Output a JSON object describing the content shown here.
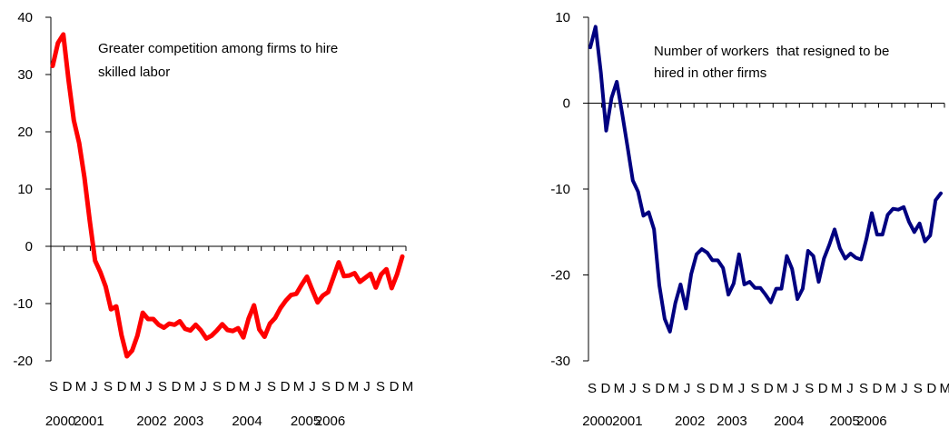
{
  "chart_data": [
    {
      "type": "line",
      "annotation_lines": [
        "Greater competition among firms to hire",
        "skilled labor"
      ],
      "ylim": [
        -20,
        40
      ],
      "yticks": [
        40,
        30,
        20,
        10,
        0,
        -10,
        -20
      ],
      "month_labels": [
        "S",
        "D",
        "M",
        "J",
        "S",
        "D",
        "M",
        "J",
        "S",
        "D",
        "M",
        "J",
        "S",
        "D",
        "M",
        "J",
        "S",
        "D",
        "M",
        "J",
        "S",
        "D",
        "M",
        "J",
        "S",
        "D",
        "M"
      ],
      "year_labels": [
        {
          "label": "2000",
          "month_index": 0.5
        },
        {
          "label": "2001",
          "month_index": 2.6
        },
        {
          "label": "2002",
          "month_index": 7.2
        },
        {
          "label": "2003",
          "month_index": 9.9
        },
        {
          "label": "2004",
          "month_index": 14.2
        },
        {
          "label": "2005",
          "month_index": 18.5
        },
        {
          "label": "2006",
          "month_index": 20.3
        }
      ],
      "series": [
        {
          "color": "#ff0000",
          "values": [
            31.5,
            35.5,
            37,
            29,
            22,
            18,
            12,
            4.5,
            -2.5,
            -4.5,
            -7,
            -11,
            -10.5,
            -15.5,
            -19.2,
            -18.2,
            -15.6,
            -11.6,
            -12.7,
            -12.7,
            -13.7,
            -14.2,
            -13.5,
            -13.7,
            -13.1,
            -14.4,
            -14.7,
            -13.7,
            -14.7,
            -16.1,
            -15.6,
            -14.7,
            -13.6,
            -14.6,
            -14.8,
            -14.3,
            -15.9,
            -12.6,
            -10.3,
            -14.5,
            -15.8,
            -13.5,
            -12.5,
            -10.8,
            -9.5,
            -8.5,
            -8.3,
            -6.7,
            -5.3,
            -7.6,
            -9.8,
            -8.6,
            -8.0,
            -5.4,
            -2.8,
            -5.2,
            -5.1,
            -4.7,
            -6.2,
            -5.5,
            -4.8,
            -7.2,
            -4.9,
            -4.0,
            -7.3,
            -4.9,
            -1.8
          ]
        }
      ]
    },
    {
      "type": "line",
      "annotation_lines": [
        "Number of workers  that resigned to be",
        "hired in other firms"
      ],
      "ylim": [
        -30,
        10
      ],
      "yticks": [
        10,
        0,
        -10,
        -20,
        -30
      ],
      "month_labels": [
        "S",
        "D",
        "M",
        "J",
        "S",
        "D",
        "M",
        "J",
        "S",
        "D",
        "M",
        "J",
        "S",
        "D",
        "M",
        "J",
        "S",
        "D",
        "M",
        "J",
        "S",
        "D",
        "M",
        "J",
        "S",
        "D",
        "M"
      ],
      "year_labels": [
        {
          "label": "2000",
          "month_index": 0.4
        },
        {
          "label": "2001",
          "month_index": 2.6
        },
        {
          "label": "2002",
          "month_index": 7.2
        },
        {
          "label": "2003",
          "month_index": 10.3
        },
        {
          "label": "2004",
          "month_index": 14.5
        },
        {
          "label": "2005",
          "month_index": 18.6
        },
        {
          "label": "2006",
          "month_index": 20.6
        }
      ],
      "series": [
        {
          "color": "#000080",
          "values": [
            6.5,
            8.9,
            3.5,
            -3.2,
            0.6,
            2.5,
            -1.2,
            -5.0,
            -9.0,
            -10.3,
            -13.1,
            -12.7,
            -14.7,
            -21.2,
            -25.1,
            -26.6,
            -23.3,
            -21.1,
            -23.9,
            -19.9,
            -17.6,
            -17.0,
            -17.4,
            -18.3,
            -18.3,
            -19.2,
            -22.3,
            -21.0,
            -17.6,
            -21.1,
            -20.8,
            -21.5,
            -21.5,
            -22.3,
            -23.2,
            -21.6,
            -21.6,
            -17.8,
            -19.3,
            -22.8,
            -21.6,
            -17.2,
            -17.8,
            -20.8,
            -18.1,
            -16.5,
            -14.7,
            -16.9,
            -18.1,
            -17.5,
            -18.0,
            -18.2,
            -15.8,
            -12.8,
            -15.3,
            -15.3,
            -13.0,
            -12.3,
            -12.4,
            -12.1,
            -13.8,
            -15.0,
            -14.0,
            -16.1,
            -15.4,
            -11.3,
            -10.5
          ]
        }
      ]
    }
  ]
}
